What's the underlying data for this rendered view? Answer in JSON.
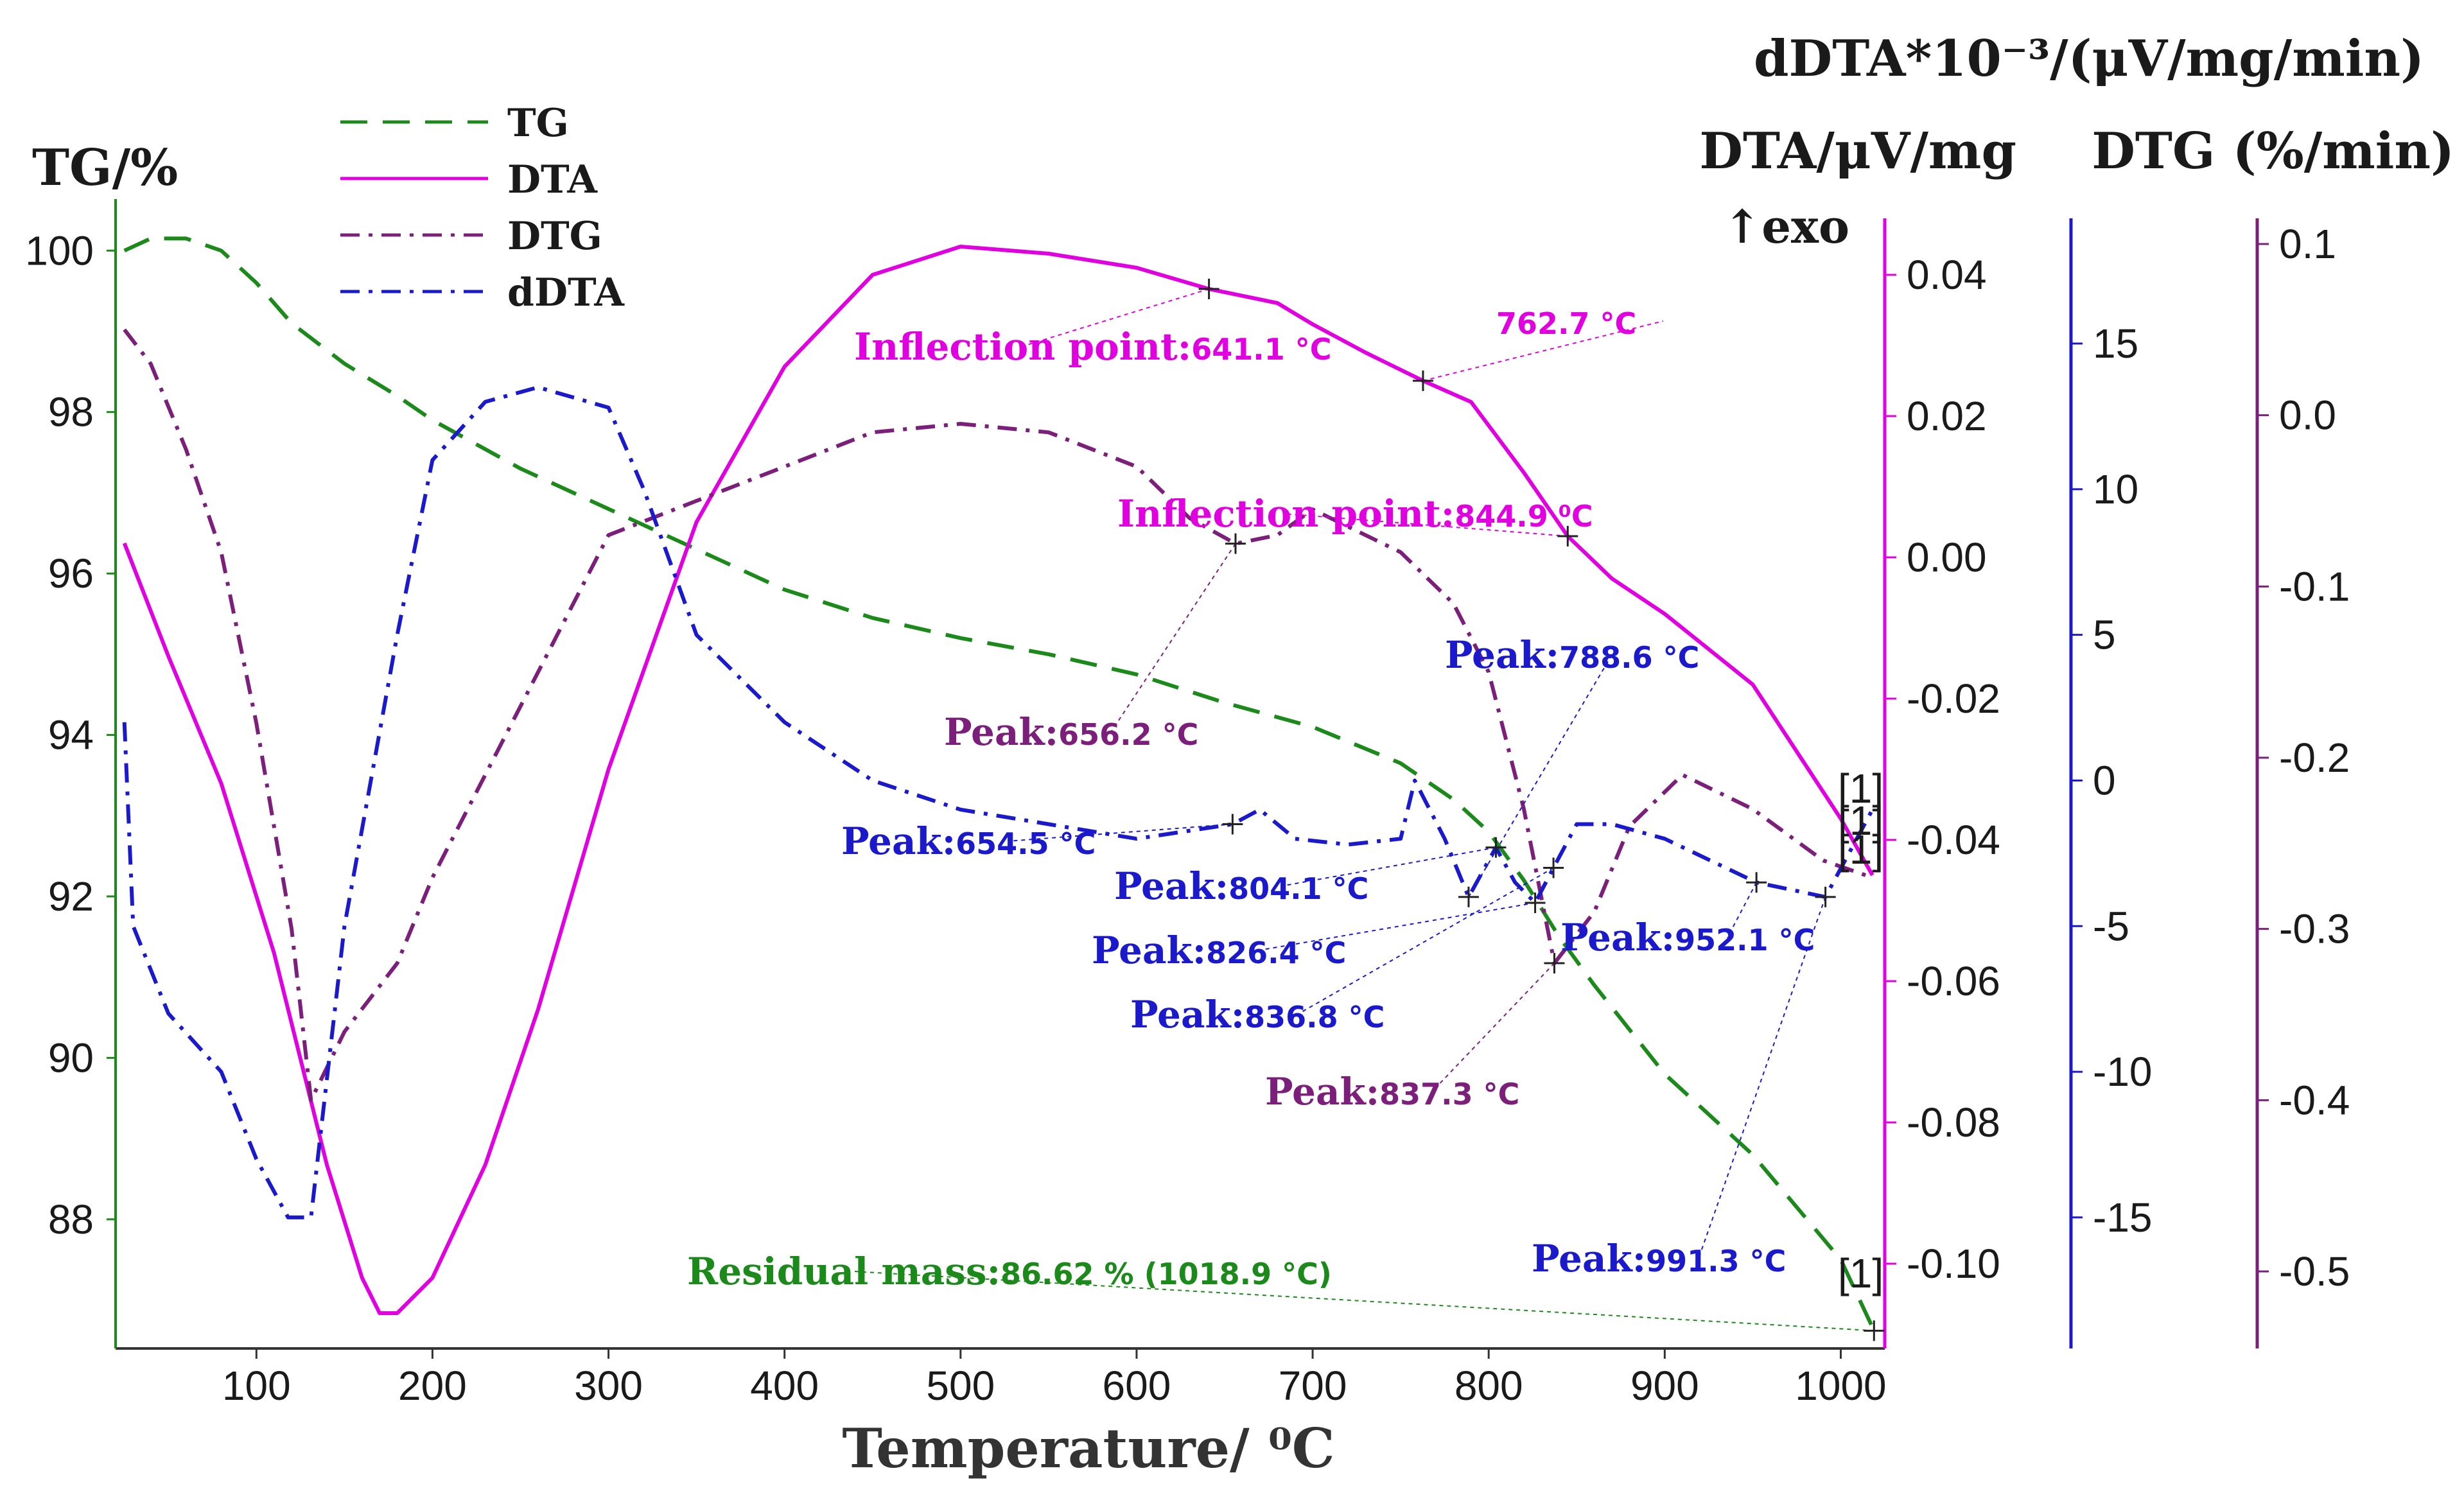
{
  "chart_data": {
    "type": "line",
    "xlabel": "Temperature/ ⁰C",
    "xlim": [
      20,
      1025
    ],
    "x_ticks": [
      100,
      200,
      300,
      400,
      500,
      600,
      700,
      800,
      900,
      1000
    ],
    "axes": {
      "tg": {
        "label": "TG/%",
        "lim": [
          86.4,
          100.4
        ],
        "ticks": [
          88,
          90,
          92,
          94,
          96,
          98,
          100
        ],
        "color": "#1b8a1b"
      },
      "dta": {
        "label": "DTA/μV/mg",
        "note": "↑exo",
        "lim": [
          -0.112,
          0.048
        ],
        "ticks": [
          -0.1,
          -0.08,
          -0.06,
          -0.04,
          -0.02,
          0.0,
          0.02,
          0.04
        ],
        "tick_labels": [
          "-0.10",
          "-0.08",
          "-0.06",
          "-0.04",
          "-0.02",
          "0.00",
          "0.02",
          "0.04"
        ],
        "color": "#e000e0"
      },
      "ddta": {
        "label": "dDTA*10⁻³/(μV/mg/min)",
        "lim": [
          -19.5,
          19.3
        ],
        "ticks": [
          -15,
          -10,
          -5,
          0,
          5,
          10,
          15
        ],
        "tick_labels": [
          "-15",
          "-10",
          "-5",
          "0",
          "5",
          "10",
          "15"
        ],
        "color": "#1a1acc"
      },
      "dtg": {
        "label": "DTG (%/min)",
        "lim": [
          -0.545,
          0.115
        ],
        "ticks": [
          -0.5,
          -0.4,
          -0.3,
          -0.2,
          -0.1,
          0.0,
          0.1
        ],
        "tick_labels": [
          "-0.5",
          "-0.4",
          "-0.3",
          "-0.2",
          "-0.1",
          "0.0",
          "0.1"
        ],
        "color": "#7b1f7b"
      }
    },
    "legend": {
      "position": "top-left",
      "entries": [
        {
          "name": "TG",
          "color": "#1b8a1b",
          "dash": "dash"
        },
        {
          "name": "DTA",
          "color": "#e000e0",
          "dash": "solid"
        },
        {
          "name": "DTG",
          "color": "#7b1f7b",
          "dash": "dashdot"
        },
        {
          "name": "dDTA",
          "color": "#1a1acc",
          "dash": "dashdot"
        }
      ]
    },
    "series": [
      {
        "name": "TG",
        "axis": "tg",
        "color": "#1b8a1b",
        "x": [
          25,
          40,
          60,
          80,
          100,
          120,
          150,
          180,
          200,
          250,
          300,
          350,
          400,
          450,
          500,
          550,
          600,
          650,
          700,
          750,
          780,
          800,
          820,
          840,
          860,
          900,
          950,
          1000,
          1018.9
        ],
        "y": [
          100.0,
          100.15,
          100.15,
          100.0,
          99.6,
          99.1,
          98.6,
          98.2,
          97.9,
          97.3,
          96.8,
          96.3,
          95.8,
          95.45,
          95.2,
          95.0,
          94.75,
          94.4,
          94.1,
          93.65,
          93.2,
          92.8,
          92.2,
          91.5,
          90.9,
          89.8,
          88.8,
          87.5,
          86.62
        ]
      },
      {
        "name": "DTA",
        "axis": "dta",
        "color": "#e000e0",
        "x": [
          25,
          50,
          80,
          110,
          140,
          160,
          170,
          180,
          200,
          230,
          260,
          300,
          350,
          400,
          450,
          500,
          550,
          600,
          641.1,
          680,
          700,
          730,
          762.7,
          790,
          820,
          844.9,
          870,
          900,
          950,
          1000,
          1018
        ],
        "y": [
          0.002,
          -0.014,
          -0.032,
          -0.056,
          -0.086,
          -0.102,
          -0.107,
          -0.107,
          -0.102,
          -0.086,
          -0.064,
          -0.03,
          0.005,
          0.027,
          0.04,
          0.044,
          0.043,
          0.041,
          0.038,
          0.036,
          0.033,
          0.029,
          0.025,
          0.022,
          0.012,
          0.003,
          -0.003,
          -0.008,
          -0.018,
          -0.037,
          -0.045
        ]
      },
      {
        "name": "DTG",
        "axis": "dtg",
        "color": "#7b1f7b",
        "x": [
          25,
          40,
          60,
          80,
          100,
          120,
          131,
          150,
          180,
          200,
          250,
          300,
          350,
          400,
          450,
          500,
          550,
          600,
          630,
          656.2,
          680,
          700,
          720,
          750,
          780,
          800,
          820,
          837.3,
          860,
          880,
          910,
          950,
          990,
          1018
        ],
        "y": [
          0.05,
          0.03,
          -0.02,
          -0.08,
          -0.18,
          -0.3,
          -0.4,
          -0.36,
          -0.32,
          -0.27,
          -0.17,
          -0.07,
          -0.05,
          -0.03,
          -0.01,
          -0.005,
          -0.01,
          -0.03,
          -0.06,
          -0.075,
          -0.07,
          -0.055,
          -0.065,
          -0.08,
          -0.11,
          -0.15,
          -0.23,
          -0.32,
          -0.29,
          -0.24,
          -0.21,
          -0.23,
          -0.26,
          -0.27
        ]
      },
      {
        "name": "dDTA",
        "axis": "ddta",
        "color": "#1a1acc",
        "x": [
          25,
          30,
          50,
          80,
          100,
          118,
          131,
          150,
          180,
          200,
          230,
          260,
          300,
          320,
          350,
          400,
          450,
          500,
          550,
          600,
          654.5,
          670,
          690,
          720,
          750,
          758,
          775,
          788.6,
          804.1,
          815,
          826.4,
          836.8,
          850,
          870,
          900,
          952.1,
          991.3,
          1018
        ],
        "y": [
          2.0,
          -5.0,
          -8.0,
          -10.0,
          -13.0,
          -15.0,
          -15.0,
          -5.0,
          5.0,
          11.0,
          13.0,
          13.5,
          12.8,
          10.0,
          5.0,
          2.0,
          0.0,
          -1.0,
          -1.5,
          -2.0,
          -1.5,
          -1.0,
          -2.0,
          -2.2,
          -2.0,
          0.0,
          -2.0,
          -4.0,
          -2.3,
          -3.5,
          -4.2,
          -3.0,
          -1.5,
          -1.5,
          -2.0,
          -3.5,
          -4.0,
          -1.0
        ]
      }
    ],
    "annotations": [
      {
        "series": "DTA",
        "text_label": "Inflection point:",
        "text_value": "641.1 °C",
        "x": 641.1,
        "y": 0.038,
        "color": "#e000e0"
      },
      {
        "series": "DTA",
        "text_label": "",
        "text_value": "762.7 °C",
        "x": 762.7,
        "y": 0.025,
        "color": "#e000e0"
      },
      {
        "series": "DTA",
        "text_label": "Inflection point:",
        "text_value": "844.9 ⁰C",
        "x": 844.9,
        "y": 0.003,
        "color": "#e000e0"
      },
      {
        "series": "DTG",
        "text_label": "Peak:",
        "text_value": "656.2 °C",
        "x": 656.2,
        "y": -0.075,
        "color": "#7b1f7b"
      },
      {
        "series": "DTG",
        "text_label": "Peak:",
        "text_value": "837.3 °C",
        "x": 837.3,
        "y": -0.32,
        "color": "#7b1f7b"
      },
      {
        "series": "dDTA",
        "text_label": "Peak:",
        "text_value": "654.5 °C",
        "x": 654.5,
        "y": -1.5,
        "color": "#1a1acc"
      },
      {
        "series": "dDTA",
        "text_label": "Peak:",
        "text_value": "788.6 °C",
        "x": 788.6,
        "y": -4.0,
        "color": "#1a1acc"
      },
      {
        "series": "dDTA",
        "text_label": "Peak:",
        "text_value": "804.1 °C",
        "x": 804.1,
        "y": -2.3,
        "color": "#1a1acc"
      },
      {
        "series": "dDTA",
        "text_label": "Peak:",
        "text_value": "826.4 °C",
        "x": 826.4,
        "y": -4.2,
        "color": "#1a1acc"
      },
      {
        "series": "dDTA",
        "text_label": "Peak:",
        "text_value": "836.8 °C",
        "x": 836.8,
        "y": -3.0,
        "color": "#1a1acc"
      },
      {
        "series": "dDTA",
        "text_label": "Peak:",
        "text_value": "952.1 °C",
        "x": 952.1,
        "y": -3.5,
        "color": "#1a1acc"
      },
      {
        "series": "dDTA",
        "text_label": "Peak:",
        "text_value": "991.3 °C",
        "x": 991.3,
        "y": -4.0,
        "color": "#1a1acc"
      },
      {
        "series": "TG",
        "text_label": "Residual mass:",
        "text_value": "86.62 % (1018.9 °C)",
        "x": 1018.9,
        "y": 86.62,
        "color": "#1b8a1b"
      }
    ],
    "end_markers": [
      "[1]",
      "[1]",
      "[1]",
      "[1]"
    ]
  }
}
